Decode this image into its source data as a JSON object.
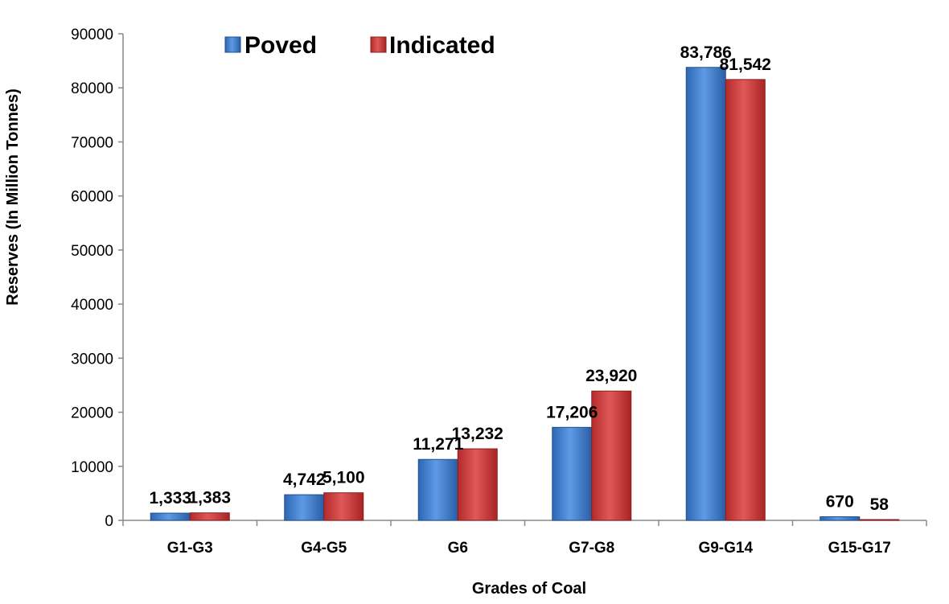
{
  "chart_data": {
    "type": "bar",
    "title": "",
    "xlabel": "Grades of Coal",
    "ylabel": "Reserves (In Million Tonnes)",
    "ylim": [
      0,
      90000
    ],
    "yticks": [
      0,
      10000,
      20000,
      30000,
      40000,
      50000,
      60000,
      70000,
      80000,
      90000
    ],
    "grid": false,
    "legend_position": "top-left",
    "categories": [
      "G1-G3",
      "G4-G5",
      "G6",
      "G7-G8",
      "G9-G14",
      "G15-G17"
    ],
    "series": [
      {
        "name": "Poved",
        "values": [
          1333,
          4742,
          11271,
          17206,
          83786,
          670
        ],
        "labels": [
          "1,333",
          "4,742",
          "11,271",
          "17,206",
          "83,786",
          "670"
        ],
        "color": "#3d7fd1"
      },
      {
        "name": "Indicated",
        "values": [
          1383,
          5100,
          13232,
          23920,
          81542,
          58
        ],
        "labels": [
          "1,383",
          "5,100",
          "13,232",
          "23,920",
          "81,542",
          "58"
        ],
        "color": "#d03a3a"
      }
    ]
  }
}
